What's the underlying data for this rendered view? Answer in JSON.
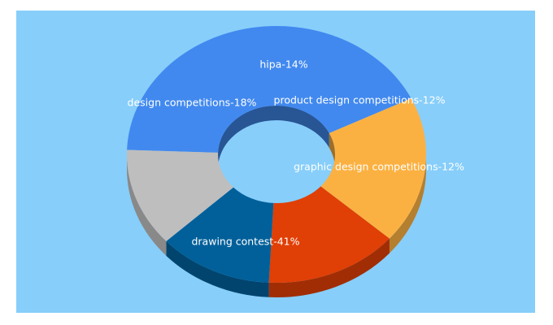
{
  "colors": {
    "background": "#ffffff",
    "panel": "#87cefa"
  },
  "chart_data": {
    "type": "pie",
    "variant": "3d-donut",
    "title": "",
    "slices": [
      {
        "name": "drawing contest",
        "value": 41,
        "label": "drawing contest-41%",
        "color": "#4189ef"
      },
      {
        "name": "design competitions",
        "value": 18,
        "label": "design competitions-18%",
        "color": "#fbb142"
      },
      {
        "name": "hipa",
        "value": 14,
        "label": "hipa-14%",
        "color": "#e03f05"
      },
      {
        "name": "product design competitions",
        "value": 12,
        "label": "product design competitions-12%",
        "color": "#01609a"
      },
      {
        "name": "graphic design competitions",
        "value": 12,
        "label": "graphic design competitions-12%",
        "color": "#bebebe"
      }
    ]
  }
}
